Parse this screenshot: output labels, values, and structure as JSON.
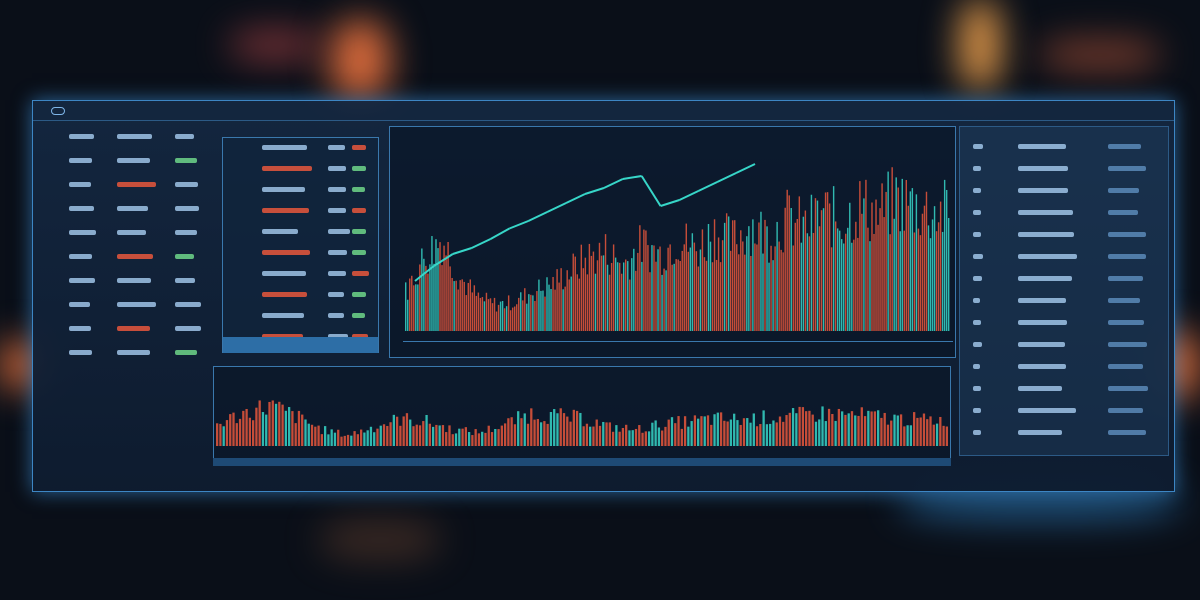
{
  "colors": {
    "background": "#0a0f18",
    "panel": "#14283f",
    "accent": "#3da6ff",
    "down": "#e8573c",
    "up": "#37d6c8",
    "glow": "#4ab8ff",
    "text": "#9fc3e6"
  },
  "icons": [
    "logo-icon",
    "chevron-down-icon",
    "expand-icon"
  ],
  "chart_data": [
    {
      "type": "bar",
      "series": [
        {
          "name": "",
          "values": [
            30,
            55,
            70,
            40,
            25,
            20,
            22,
            30,
            35,
            45,
            55,
            60,
            50,
            65,
            58,
            70,
            62,
            75,
            68,
            80,
            72,
            85,
            78,
            90,
            82,
            95,
            88,
            100,
            95,
            90
          ]
        }
      ]
    },
    {
      "type": "line",
      "series": [
        {
          "name": "",
          "values": [
            20,
            30,
            38,
            42,
            48,
            55,
            60,
            66,
            72,
            78,
            82,
            88,
            90,
            70,
            74,
            80,
            86,
            92,
            98
          ]
        }
      ]
    },
    {
      "type": "bar",
      "series": [
        {
          "name": "",
          "values": [
            40,
            60,
            75,
            55,
            30,
            20,
            35,
            50,
            45,
            30,
            25,
            40,
            60,
            55,
            50,
            35,
            30,
            40,
            45,
            50,
            48,
            52,
            55,
            60,
            58,
            55,
            50,
            48
          ]
        }
      ]
    }
  ]
}
